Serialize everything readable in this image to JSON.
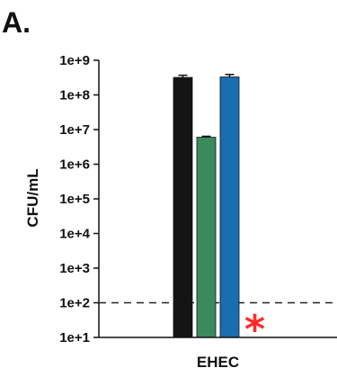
{
  "panel_label": "A.",
  "chart_data": {
    "type": "bar",
    "scale": "log",
    "ylabel": "CFU/mL",
    "xlabel": "",
    "categories": [
      "EHEC"
    ],
    "ylim": [
      10,
      1000000000
    ],
    "yticks": [
      {
        "value": 10,
        "label": "1e+1"
      },
      {
        "value": 100,
        "label": "1e+2"
      },
      {
        "value": 1000,
        "label": "1e+3"
      },
      {
        "value": 10000,
        "label": "1e+4"
      },
      {
        "value": 100000,
        "label": "1e+5"
      },
      {
        "value": 1000000,
        "label": "1e+6"
      },
      {
        "value": 10000000,
        "label": "1e+7"
      },
      {
        "value": 100000000,
        "label": "1e+8"
      },
      {
        "value": 1000000000,
        "label": "1e+9"
      }
    ],
    "bars": [
      {
        "value": 320000000,
        "error": 50000000,
        "color": "#141414"
      },
      {
        "value": 6000000,
        "error": 400000,
        "color": "#3a8a5c"
      },
      {
        "value": 330000000,
        "error": 60000000,
        "color": "#1a6db0"
      },
      {
        "value": 10,
        "error": 0,
        "color": "#1a6db0",
        "annotation": "*",
        "annotation_color": "#ff2a2a"
      }
    ],
    "threshold": {
      "value": 100,
      "style": "dashed"
    },
    "grid": false,
    "legend": "none"
  }
}
